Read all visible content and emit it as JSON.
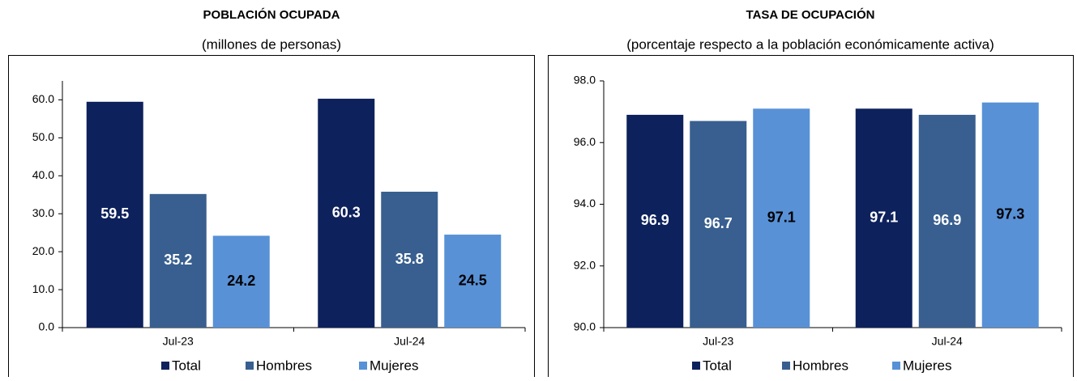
{
  "chart_data": [
    {
      "type": "bar",
      "title": "POBLACIÓN OCUPADA",
      "subtitle": "(millones de personas)",
      "categories": [
        "Jul-23",
        "Jul-24"
      ],
      "series": [
        {
          "name": "Total",
          "color": "#0d215c",
          "label_color": "#ffffff",
          "values": [
            59.5,
            60.3
          ]
        },
        {
          "name": "Hombres",
          "color": "#385f8f",
          "label_color": "#ffffff",
          "values": [
            35.2,
            35.8
          ]
        },
        {
          "name": "Mujeres",
          "color": "#5891d6",
          "label_color": "#000000",
          "values": [
            24.2,
            24.5
          ]
        }
      ],
      "ylim": [
        0,
        65
      ],
      "yticks": [
        {
          "value": 0,
          "label": "0.0"
        },
        {
          "value": 10,
          "label": "10.0"
        },
        {
          "value": 20,
          "label": "20.0"
        },
        {
          "value": 30,
          "label": "30.0"
        },
        {
          "value": 40,
          "label": "40.0"
        },
        {
          "value": 50,
          "label": "50.0"
        },
        {
          "value": 60,
          "label": "60.0"
        }
      ]
    },
    {
      "type": "bar",
      "title": "TASA DE OCUPACIÓN",
      "subtitle": "(porcentaje respecto a la población económicamente activa)",
      "categories": [
        "Jul-23",
        "Jul-24"
      ],
      "series": [
        {
          "name": "Total",
          "color": "#0d215c",
          "label_color": "#ffffff",
          "values": [
            96.9,
            97.1
          ]
        },
        {
          "name": "Hombres",
          "color": "#385f8f",
          "label_color": "#ffffff",
          "values": [
            96.7,
            96.9
          ]
        },
        {
          "name": "Mujeres",
          "color": "#5891d6",
          "label_color": "#000000",
          "values": [
            97.1,
            97.3
          ]
        }
      ],
      "ylim": [
        90,
        98
      ],
      "yticks": [
        {
          "value": 90,
          "label": "90.0"
        },
        {
          "value": 92,
          "label": "92.0"
        },
        {
          "value": 94,
          "label": "94.0"
        },
        {
          "value": 96,
          "label": "96.0"
        },
        {
          "value": 98,
          "label": "98.0"
        }
      ]
    }
  ]
}
